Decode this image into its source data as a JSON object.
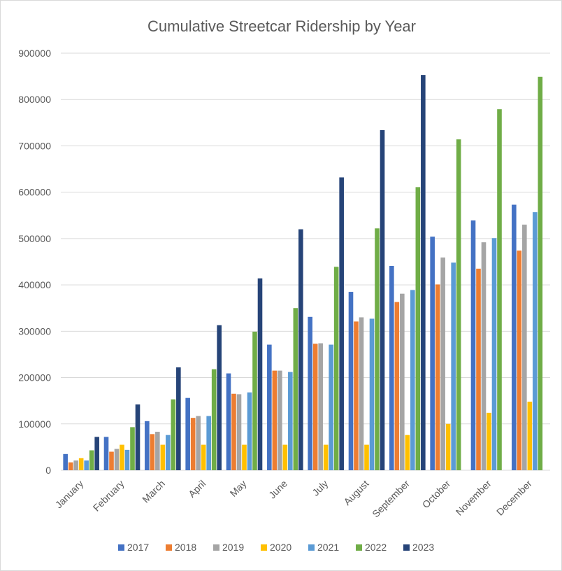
{
  "chart_data": {
    "type": "bar",
    "title": "Cumulative Streetcar Ridership by Year",
    "xlabel": "",
    "ylabel": "",
    "ylim": [
      0,
      900000
    ],
    "yticks": [
      0,
      100000,
      200000,
      300000,
      400000,
      500000,
      600000,
      700000,
      800000,
      900000
    ],
    "grid": true,
    "legend_position": "bottom",
    "categories": [
      "January",
      "February",
      "March",
      "April",
      "May",
      "June",
      "July",
      "August",
      "September",
      "October",
      "November",
      "December"
    ],
    "series": [
      {
        "name": "2017",
        "color": "#4472c4",
        "values": [
          35000,
          72000,
          106000,
          156000,
          209000,
          271000,
          331000,
          385000,
          441000,
          504000,
          539000,
          573000
        ]
      },
      {
        "name": "2018",
        "color": "#ed7d31",
        "values": [
          17000,
          40000,
          78000,
          113000,
          165000,
          215000,
          273000,
          321000,
          363000,
          401000,
          435000,
          474000
        ]
      },
      {
        "name": "2019",
        "color": "#a5a5a5",
        "values": [
          21000,
          46000,
          83000,
          117000,
          164000,
          215000,
          274000,
          330000,
          381000,
          459000,
          492000,
          530000
        ]
      },
      {
        "name": "2020",
        "color": "#ffc000",
        "values": [
          26000,
          55000,
          55000,
          55000,
          55000,
          55000,
          55000,
          55000,
          76000,
          100000,
          124000,
          148000
        ]
      },
      {
        "name": "2021",
        "color": "#5b9bd5",
        "values": [
          21000,
          44000,
          76000,
          117000,
          168000,
          212000,
          271000,
          327000,
          389000,
          448000,
          501000,
          557000
        ]
      },
      {
        "name": "2022",
        "color": "#70ad47",
        "values": [
          43000,
          93000,
          153000,
          218000,
          299000,
          350000,
          439000,
          522000,
          611000,
          714000,
          779000,
          849000
        ]
      },
      {
        "name": "2023",
        "color": "#264478",
        "values": [
          72000,
          142000,
          222000,
          313000,
          414000,
          520000,
          632000,
          734000,
          853000,
          null,
          null,
          null
        ]
      }
    ]
  }
}
